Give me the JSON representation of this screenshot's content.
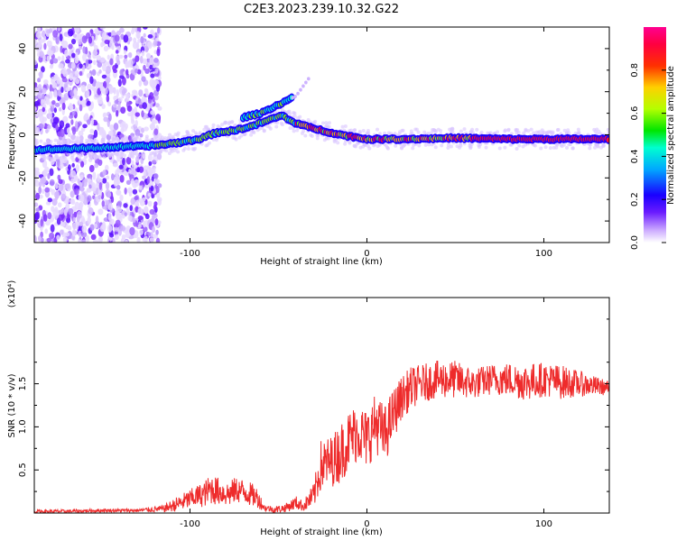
{
  "title": "C2E3.2023.239.10.32.G22",
  "chart_data": [
    {
      "type": "heatmap",
      "xlabel": "Height of straight line (km)",
      "ylabel": "Frequency (Hz)",
      "xlim": [
        -188,
        137
      ],
      "ylim": [
        -50,
        50
      ],
      "xticks": [
        -100,
        0,
        100
      ],
      "yticks": [
        -40,
        -20,
        0,
        20,
        40
      ],
      "colorbar": {
        "label": "Normalized spectral amplitude",
        "range": [
          0,
          1
        ],
        "ticks": [
          0.0,
          0.2,
          0.4,
          0.6,
          0.8
        ],
        "colormap": [
          "#ffffff",
          "#9a4dff",
          "#1a00ff",
          "#00b0ff",
          "#00ffc8",
          "#00e600",
          "#c8ff00",
          "#ffc800",
          "#ff4000",
          "#ff0040",
          "#ff00a0"
        ]
      },
      "ridge": {
        "x": [
          -188,
          -150,
          -120,
          -105,
          -95,
          -85,
          -75,
          -65,
          -55,
          -48,
          -42,
          -35,
          -25,
          -15,
          0,
          20,
          50,
          80,
          110,
          137
        ],
        "y": [
          -7,
          -6,
          -5,
          -3.5,
          -2,
          1,
          2,
          4,
          7,
          9,
          6,
          4,
          2,
          0,
          -2,
          -2,
          -1.5,
          -2,
          -2,
          -2
        ]
      },
      "ridge_upper": {
        "x": [
          -70,
          -60,
          -50,
          -40,
          -33
        ],
        "y": [
          8,
          10,
          14,
          18,
          26
        ]
      },
      "noise_region_x": [
        -188,
        -117
      ]
    },
    {
      "type": "line",
      "xlabel": "Height of straight line (km)",
      "ylabel": "SNR (10 * v/v)",
      "y_multiplier": "(x10⁴)",
      "xlim": [
        -188,
        137
      ],
      "ylim": [
        0,
        2.5
      ],
      "xticks": [
        -100,
        0,
        100
      ],
      "yticks": [
        0.5,
        1.0,
        1.5
      ],
      "ytick_labels": [
        "0.5",
        "1.0",
        "1.5"
      ],
      "color": "#ee2b2b",
      "trend": {
        "x": [
          -188,
          -170,
          -150,
          -130,
          -115,
          -105,
          -98,
          -92,
          -88,
          -82,
          -78,
          -74,
          -68,
          -62,
          -58,
          -52,
          -46,
          -40,
          -36,
          -30,
          -26,
          -20,
          -15,
          -10,
          -5,
          0,
          5,
          10,
          15,
          20,
          25,
          30,
          40,
          50,
          60,
          70,
          80,
          90,
          100,
          110,
          120,
          137
        ],
        "mean": [
          0.02,
          0.02,
          0.03,
          0.03,
          0.05,
          0.12,
          0.18,
          0.22,
          0.28,
          0.24,
          0.22,
          0.27,
          0.24,
          0.18,
          0.06,
          0.04,
          0.06,
          0.12,
          0.08,
          0.2,
          0.55,
          0.6,
          0.7,
          0.85,
          0.95,
          0.85,
          1.05,
          0.9,
          1.15,
          1.35,
          1.45,
          1.5,
          1.55,
          1.55,
          1.5,
          1.55,
          1.55,
          1.52,
          1.55,
          1.52,
          1.5,
          1.45
        ],
        "spread": [
          0.02,
          0.02,
          0.02,
          0.02,
          0.04,
          0.1,
          0.12,
          0.15,
          0.18,
          0.15,
          0.15,
          0.15,
          0.15,
          0.12,
          0.04,
          0.04,
          0.05,
          0.08,
          0.06,
          0.15,
          0.3,
          0.3,
          0.35,
          0.35,
          0.35,
          0.35,
          0.35,
          0.35,
          0.3,
          0.25,
          0.25,
          0.22,
          0.22,
          0.22,
          0.18,
          0.18,
          0.2,
          0.22,
          0.2,
          0.2,
          0.15,
          0.08
        ]
      }
    }
  ]
}
